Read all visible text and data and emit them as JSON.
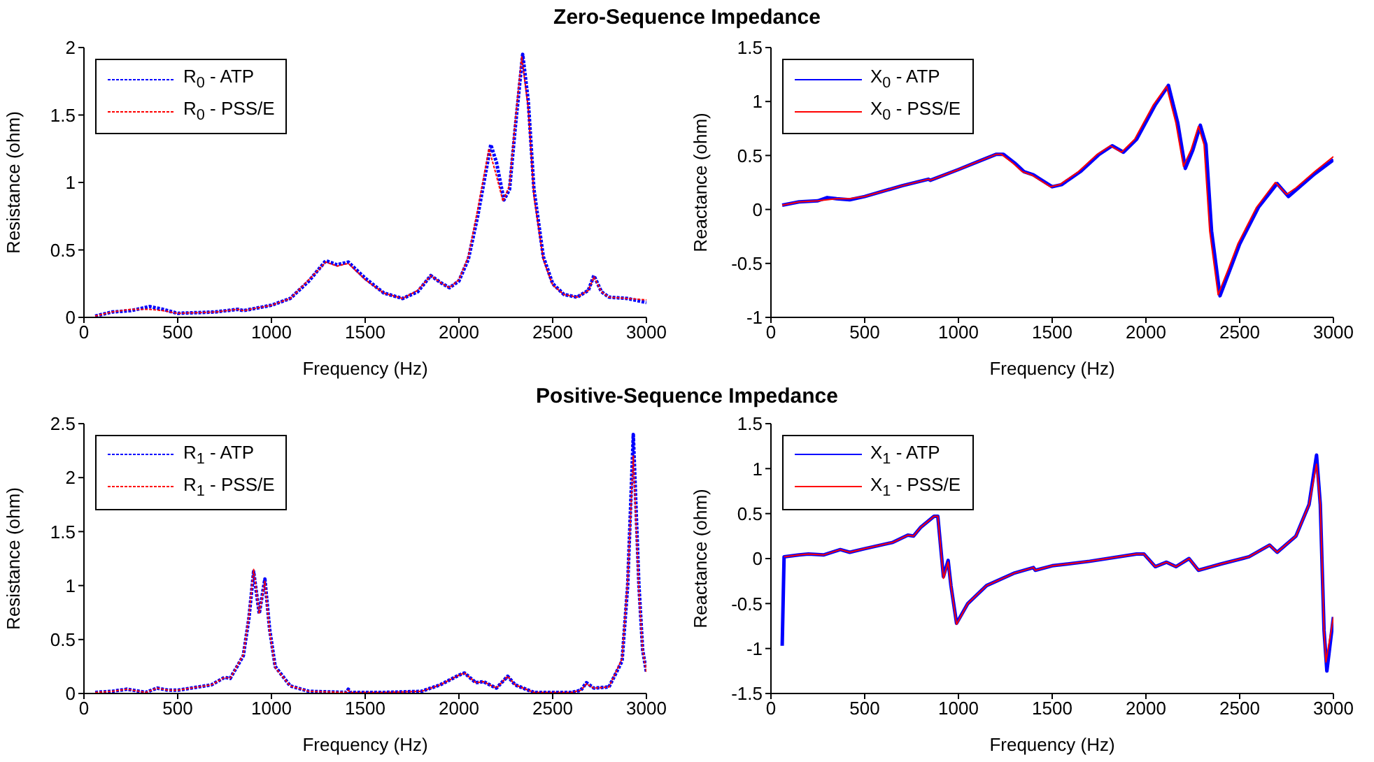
{
  "chart_data": [
    {
      "type": "line",
      "title": "Zero-Sequence Impedance",
      "xlabel": "Frequency (Hz)",
      "ylabel": "Resistance (ohm)",
      "xlim": [
        0,
        3000
      ],
      "xticks": [
        0,
        500,
        1000,
        1500,
        2000,
        2500,
        3000
      ],
      "ylim": [
        0,
        2
      ],
      "yticks": [
        0,
        0.5,
        1,
        1.5,
        2
      ],
      "legend": "top left",
      "series": [
        {
          "name": "R$_{0}$ - ATP",
          "color": "#0000ff",
          "line_style": "dotted",
          "x": [
            60,
            150,
            250,
            350,
            420,
            500,
            700,
            820,
            850,
            1000,
            1100,
            1200,
            1290,
            1350,
            1410,
            1500,
            1600,
            1700,
            1780,
            1850,
            1900,
            1950,
            2000,
            2050,
            2100,
            2170,
            2200,
            2240,
            2270,
            2300,
            2340,
            2370,
            2400,
            2450,
            2500,
            2560,
            2630,
            2690,
            2720,
            2760,
            2800,
            2900,
            3000
          ],
          "values": [
            0.01,
            0.04,
            0.05,
            0.08,
            0.06,
            0.03,
            0.04,
            0.06,
            0.05,
            0.09,
            0.14,
            0.27,
            0.42,
            0.39,
            0.41,
            0.29,
            0.18,
            0.14,
            0.19,
            0.31,
            0.26,
            0.22,
            0.27,
            0.43,
            0.75,
            1.28,
            1.15,
            0.87,
            0.95,
            1.4,
            1.95,
            1.6,
            0.95,
            0.45,
            0.25,
            0.17,
            0.15,
            0.2,
            0.31,
            0.19,
            0.15,
            0.14,
            0.11
          ]
        },
        {
          "name": "R$_{0}$ - PSS/E",
          "color": "#ff0000",
          "line_style": "dotted",
          "x": [
            60,
            150,
            250,
            350,
            420,
            500,
            700,
            820,
            850,
            1000,
            1100,
            1200,
            1290,
            1350,
            1410,
            1500,
            1600,
            1700,
            1780,
            1850,
            1900,
            1950,
            2000,
            2050,
            2100,
            2160,
            2200,
            2235,
            2270,
            2300,
            2335,
            2370,
            2400,
            2450,
            2500,
            2560,
            2630,
            2690,
            2720,
            2760,
            2800,
            2900,
            3000
          ],
          "values": [
            0.01,
            0.04,
            0.06,
            0.06,
            0.05,
            0.03,
            0.04,
            0.06,
            0.05,
            0.09,
            0.14,
            0.28,
            0.41,
            0.38,
            0.4,
            0.28,
            0.18,
            0.14,
            0.2,
            0.31,
            0.26,
            0.22,
            0.28,
            0.45,
            0.8,
            1.25,
            1.05,
            0.86,
            0.98,
            1.45,
            1.93,
            1.55,
            0.9,
            0.43,
            0.24,
            0.17,
            0.15,
            0.2,
            0.3,
            0.19,
            0.15,
            0.14,
            0.13
          ]
        }
      ]
    },
    {
      "type": "line",
      "xlabel": "Frequency (Hz)",
      "ylabel": "Reactance (ohm)",
      "xlim": [
        0,
        3000
      ],
      "xticks": [
        0,
        500,
        1000,
        1500,
        2000,
        2500,
        3000
      ],
      "ylim": [
        -1,
        1.5
      ],
      "yticks": [
        -1,
        -0.5,
        0,
        0.5,
        1,
        1.5
      ],
      "legend": "top left",
      "series": [
        {
          "name": "X$_{0}$ - ATP",
          "color": "#0000ff",
          "line_style": "solid",
          "x": [
            60,
            150,
            250,
            300,
            350,
            420,
            500,
            700,
            840,
            850,
            1000,
            1100,
            1200,
            1240,
            1300,
            1350,
            1400,
            1500,
            1550,
            1650,
            1750,
            1820,
            1880,
            1950,
            2050,
            2120,
            2170,
            2210,
            2250,
            2290,
            2320,
            2350,
            2395,
            2450,
            2500,
            2600,
            2700,
            2760,
            2800,
            2900,
            3000
          ],
          "values": [
            0.04,
            0.07,
            0.08,
            0.11,
            0.1,
            0.09,
            0.12,
            0.22,
            0.28,
            0.27,
            0.37,
            0.44,
            0.51,
            0.51,
            0.43,
            0.35,
            0.32,
            0.21,
            0.23,
            0.35,
            0.51,
            0.59,
            0.53,
            0.65,
            0.97,
            1.15,
            0.8,
            0.38,
            0.55,
            0.78,
            0.6,
            -0.2,
            -0.8,
            -0.55,
            -0.32,
            0.02,
            0.24,
            0.12,
            0.18,
            0.33,
            0.46
          ]
        },
        {
          "name": "X$_{0}$ - PSS/E",
          "color": "#ff0000",
          "line_style": "solid",
          "x": [
            60,
            150,
            250,
            300,
            350,
            420,
            500,
            700,
            840,
            850,
            1000,
            1100,
            1200,
            1230,
            1290,
            1340,
            1390,
            1490,
            1540,
            1640,
            1740,
            1810,
            1870,
            1940,
            2040,
            2110,
            2160,
            2200,
            2240,
            2280,
            2310,
            2340,
            2385,
            2440,
            2490,
            2590,
            2690,
            2750,
            2800,
            2900,
            3000
          ],
          "values": [
            0.04,
            0.07,
            0.08,
            0.09,
            0.1,
            0.1,
            0.12,
            0.22,
            0.28,
            0.27,
            0.37,
            0.44,
            0.51,
            0.51,
            0.43,
            0.35,
            0.32,
            0.21,
            0.23,
            0.35,
            0.51,
            0.59,
            0.53,
            0.65,
            0.97,
            1.14,
            0.8,
            0.4,
            0.55,
            0.77,
            0.6,
            -0.2,
            -0.79,
            -0.55,
            -0.32,
            0.02,
            0.25,
            0.14,
            0.2,
            0.35,
            0.49
          ]
        }
      ]
    },
    {
      "type": "line",
      "title": "Positive-Sequence Impedance",
      "xlabel": "Frequency (Hz)",
      "ylabel": "Resistance (ohm)",
      "xlim": [
        0,
        3000
      ],
      "xticks": [
        0,
        500,
        1000,
        1500,
        2000,
        2500,
        3000
      ],
      "ylim": [
        0,
        2.5
      ],
      "yticks": [
        0,
        0.5,
        1,
        1.5,
        2,
        2.5
      ],
      "legend": "top left",
      "series": [
        {
          "name": "R$_{1}$ - ATP",
          "color": "#0000ff",
          "line_style": "dotted",
          "x": [
            60,
            150,
            230,
            330,
            390,
            450,
            500,
            680,
            750,
            780,
            850,
            880,
            905,
            935,
            965,
            990,
            1020,
            1100,
            1200,
            1400,
            1410,
            1420,
            1600,
            1800,
            1900,
            2000,
            2030,
            2090,
            2130,
            2200,
            2260,
            2300,
            2400,
            2600,
            2650,
            2680,
            2720,
            2800,
            2870,
            2900,
            2930,
            2960,
            2980,
            3000
          ],
          "values": [
            0.01,
            0.02,
            0.04,
            0.01,
            0.05,
            0.03,
            0.03,
            0.08,
            0.15,
            0.14,
            0.35,
            0.7,
            1.13,
            0.74,
            1.06,
            0.6,
            0.25,
            0.07,
            0.02,
            0.01,
            0.04,
            0.01,
            0.01,
            0.02,
            0.08,
            0.17,
            0.19,
            0.1,
            0.11,
            0.05,
            0.16,
            0.08,
            0.01,
            0.01,
            0.03,
            0.1,
            0.05,
            0.06,
            0.3,
            1.0,
            2.4,
            1.0,
            0.4,
            0.2
          ]
        },
        {
          "name": "R$_{1}$ - PSS/E",
          "color": "#ff0000",
          "line_style": "dotted",
          "x": [
            60,
            150,
            230,
            330,
            390,
            450,
            500,
            680,
            750,
            780,
            850,
            880,
            905,
            935,
            965,
            990,
            1020,
            1100,
            1200,
            1400,
            1410,
            1420,
            1600,
            1800,
            1900,
            2000,
            2030,
            2090,
            2130,
            2200,
            2260,
            2300,
            2400,
            2600,
            2650,
            2680,
            2720,
            2800,
            2870,
            2900,
            2930,
            2960,
            2980,
            3000
          ],
          "values": [
            0.01,
            0.02,
            0.04,
            0.01,
            0.05,
            0.03,
            0.03,
            0.08,
            0.15,
            0.14,
            0.36,
            0.72,
            1.15,
            0.74,
            1.04,
            0.58,
            0.24,
            0.07,
            0.02,
            0.01,
            0.03,
            0.01,
            0.01,
            0.02,
            0.08,
            0.17,
            0.19,
            0.1,
            0.11,
            0.05,
            0.16,
            0.08,
            0.01,
            0.01,
            0.03,
            0.09,
            0.05,
            0.06,
            0.32,
            1.05,
            2.2,
            0.95,
            0.4,
            0.2
          ]
        }
      ]
    },
    {
      "type": "line",
      "xlabel": "Frequency (Hz)",
      "ylabel": "Reactance (ohm)",
      "xlim": [
        0,
        3000
      ],
      "xticks": [
        0,
        500,
        1000,
        1500,
        2000,
        2500,
        3000
      ],
      "ylim": [
        -1.5,
        1.5
      ],
      "yticks": [
        -1.5,
        -1,
        -0.5,
        0,
        0.5,
        1,
        1.5
      ],
      "legend": "top left",
      "series": [
        {
          "name": "X$_{1}$ - ATP",
          "color": "#0000ff",
          "line_style": "solid",
          "x": [
            60,
            70,
            150,
            200,
            280,
            370,
            420,
            500,
            650,
            730,
            760,
            800,
            870,
            890,
            920,
            945,
            960,
            990,
            1050,
            1150,
            1300,
            1400,
            1410,
            1500,
            1700,
            1950,
            1990,
            2050,
            2110,
            2160,
            2230,
            2280,
            2400,
            2550,
            2660,
            2700,
            2800,
            2870,
            2910,
            2930,
            2950,
            2965,
            3000
          ],
          "values": [
            -0.97,
            0.02,
            0.04,
            0.05,
            0.04,
            0.1,
            0.07,
            0.11,
            0.18,
            0.26,
            0.25,
            0.35,
            0.47,
            0.47,
            -0.2,
            -0.02,
            -0.3,
            -0.72,
            -0.5,
            -0.3,
            -0.16,
            -0.1,
            -0.13,
            -0.08,
            -0.03,
            0.05,
            0.05,
            -0.09,
            -0.04,
            -0.09,
            0,
            -0.13,
            -0.06,
            0.02,
            0.15,
            0.07,
            0.25,
            0.6,
            1.15,
            0.6,
            -0.8,
            -1.25,
            -0.65
          ]
        },
        {
          "name": "X$_{1}$ - PSS/E",
          "color": "#ff0000",
          "line_style": "solid",
          "x": [
            70,
            150,
            200,
            280,
            370,
            420,
            500,
            650,
            730,
            760,
            800,
            870,
            890,
            920,
            945,
            960,
            990,
            1050,
            1150,
            1300,
            1400,
            1410,
            1500,
            1700,
            1950,
            1990,
            2050,
            2110,
            2160,
            2230,
            2280,
            2400,
            2550,
            2660,
            2700,
            2800,
            2870,
            2910,
            2930,
            2950,
            2960,
            3000
          ],
          "values": [
            0.02,
            0.04,
            0.05,
            0.04,
            0.1,
            0.07,
            0.11,
            0.18,
            0.26,
            0.25,
            0.35,
            0.47,
            0.47,
            -0.22,
            -0.04,
            -0.3,
            -0.73,
            -0.5,
            -0.3,
            -0.16,
            -0.1,
            -0.13,
            -0.08,
            -0.03,
            0.05,
            0.05,
            -0.09,
            -0.04,
            -0.09,
            0,
            -0.13,
            -0.06,
            0.02,
            0.15,
            0.07,
            0.25,
            0.6,
            1.05,
            0.6,
            -0.8,
            -1.15,
            -0.65
          ]
        }
      ]
    }
  ]
}
